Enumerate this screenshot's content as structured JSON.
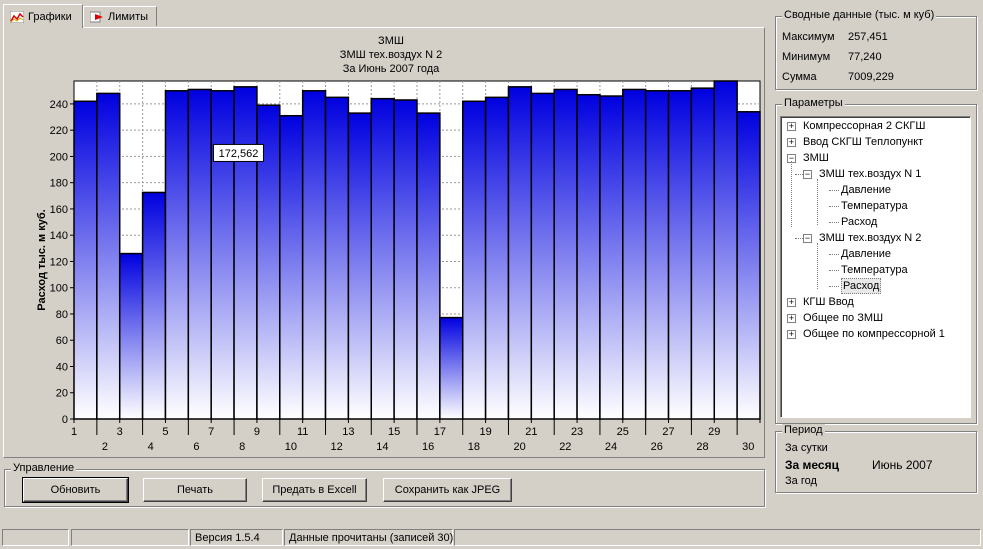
{
  "tabs": [
    {
      "label": "Графики",
      "active": true,
      "icon": "chart-icon"
    },
    {
      "label": "Лимиты",
      "active": false,
      "icon": "limits-icon"
    }
  ],
  "summary": {
    "title": "Сводные данные (тыс. м куб)",
    "rows": [
      {
        "label": "Максимум",
        "value": "257,451"
      },
      {
        "label": "Минимум",
        "value": "77,240"
      },
      {
        "label": "Сумма",
        "value": "7009,229"
      }
    ]
  },
  "params": {
    "title": "Параметры",
    "tree": [
      {
        "label": "Компрессорная 2 СКГШ",
        "level": 0,
        "toggle": "+"
      },
      {
        "label": "Ввод СКГШ Теплопункт",
        "level": 0,
        "toggle": "+"
      },
      {
        "label": "ЗМШ",
        "level": 0,
        "toggle": "-"
      },
      {
        "label": "ЗМШ тех.воздух N 1",
        "level": 1,
        "toggle": "-"
      },
      {
        "label": "Давление",
        "level": 2,
        "toggle": ""
      },
      {
        "label": "Температура",
        "level": 2,
        "toggle": ""
      },
      {
        "label": "Расход",
        "level": 2,
        "toggle": ""
      },
      {
        "label": "ЗМШ тех.воздух N 2",
        "level": 1,
        "toggle": "-"
      },
      {
        "label": "Давление",
        "level": 2,
        "toggle": ""
      },
      {
        "label": "Температура",
        "level": 2,
        "toggle": ""
      },
      {
        "label": "Расход",
        "level": 2,
        "toggle": "",
        "selected": true
      },
      {
        "label": "КГШ Ввод",
        "level": 0,
        "toggle": "+"
      },
      {
        "label": "Общее по ЗМШ",
        "level": 0,
        "toggle": "+"
      },
      {
        "label": "Общее по компрессорной 1",
        "level": 0,
        "toggle": "+"
      }
    ]
  },
  "period": {
    "title": "Период",
    "day": "За сутки",
    "month": "За месяц",
    "month_value": "Июнь 2007",
    "year": "За год"
  },
  "controls": {
    "title": "Управление",
    "refresh": "Обновить",
    "print": "Печать",
    "excel": "Предать в Excell",
    "jpeg": "Сохранить как JPEG"
  },
  "status": {
    "version": "Версия 1.5.4",
    "message": "Данные прочитаны (записей 30)"
  },
  "chart_data": {
    "type": "bar",
    "title_lines": [
      "ЗМШ",
      "ЗМШ тех.воздух N 2",
      "За Июнь 2007 года"
    ],
    "ylabel": "Расход тыс. м куб.",
    "xlabel": "",
    "ylim": [
      0,
      257.451
    ],
    "yticks": [
      0,
      20,
      40,
      60,
      80,
      100,
      120,
      140,
      160,
      180,
      200,
      220,
      240
    ],
    "categories": [
      1,
      2,
      3,
      4,
      5,
      6,
      7,
      8,
      9,
      10,
      11,
      12,
      13,
      14,
      15,
      16,
      17,
      18,
      19,
      20,
      21,
      22,
      23,
      24,
      25,
      26,
      27,
      28,
      29,
      30
    ],
    "values": [
      242,
      248,
      126,
      172.562,
      250,
      251,
      250,
      253,
      239,
      231,
      250,
      245,
      233,
      244,
      243,
      233,
      77.24,
      242,
      245,
      253,
      248,
      251,
      247,
      246,
      251,
      250,
      250,
      252,
      257.451,
      234
    ],
    "tooltip": {
      "index": 3,
      "text": "172,562"
    },
    "grid": true,
    "colors": {
      "bar_top": "#0000e0",
      "bar_bottom": "#ffffff",
      "plot_bg": "#ffffff"
    }
  }
}
